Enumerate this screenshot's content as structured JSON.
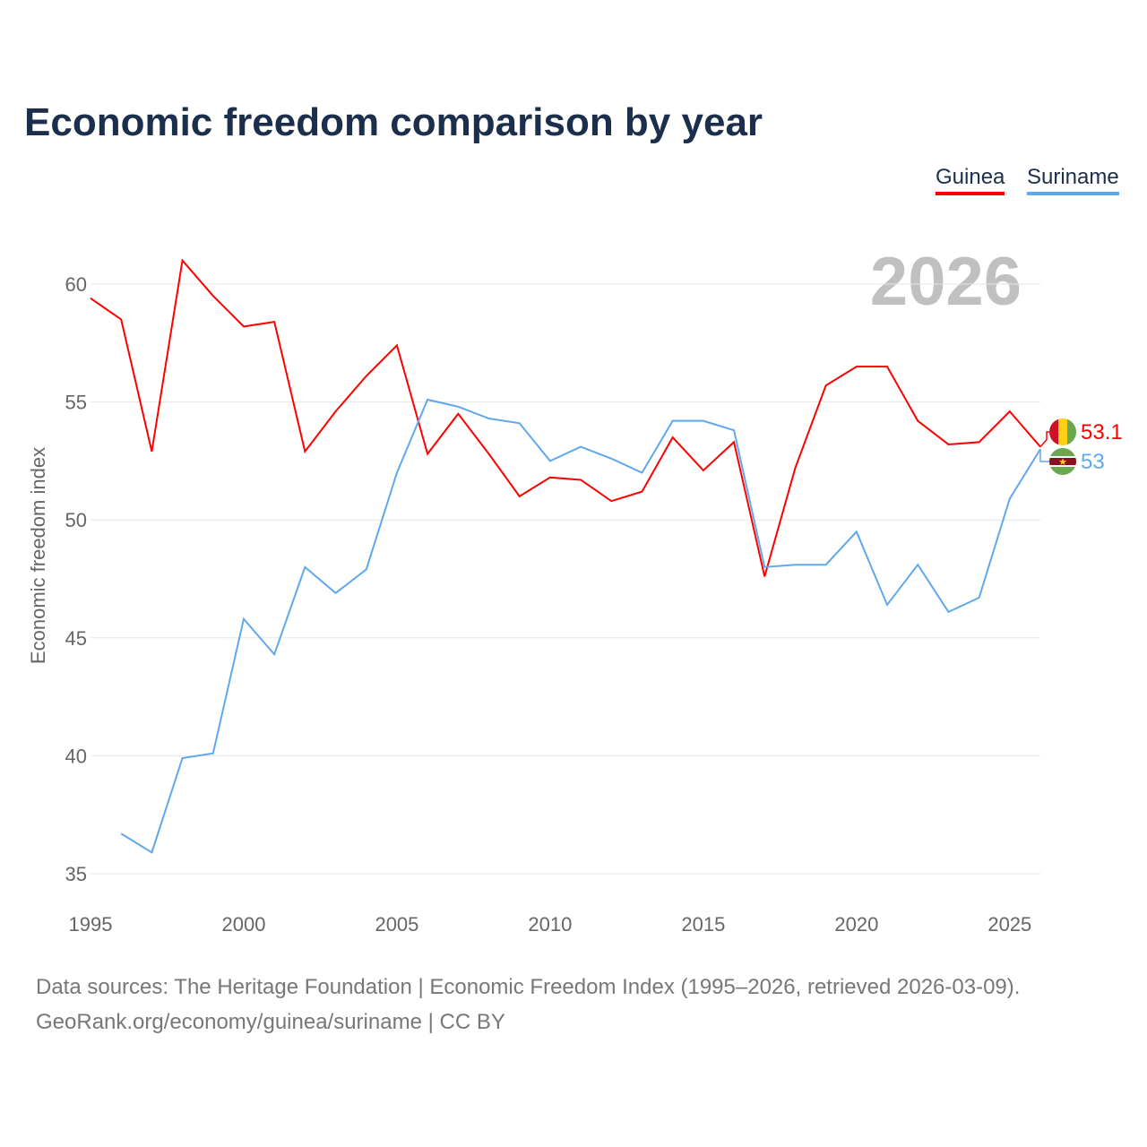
{
  "chart_data": {
    "type": "line",
    "title": "Economic freedom comparison by year",
    "ylabel": "Economic freedom index",
    "xlabel": "",
    "xlim": [
      1995,
      2026
    ],
    "ylim": [
      35,
      62
    ],
    "yticks": [
      35,
      40,
      45,
      50,
      55,
      60
    ],
    "xticks": [
      1995,
      2000,
      2005,
      2010,
      2015,
      2020,
      2025
    ],
    "grid": true,
    "legend_position": "top-right",
    "year_watermark": "2026",
    "series": [
      {
        "name": "Guinea",
        "color": "#ff0000",
        "end_label": "53.1",
        "x": [
          1995,
          1996,
          1997,
          1998,
          1999,
          2000,
          2001,
          2002,
          2003,
          2004,
          2005,
          2006,
          2007,
          2008,
          2009,
          2010,
          2011,
          2012,
          2013,
          2014,
          2015,
          2016,
          2017,
          2018,
          2019,
          2020,
          2021,
          2022,
          2023,
          2024,
          2025,
          2026
        ],
        "values": [
          59.4,
          58.5,
          52.9,
          61.0,
          59.5,
          58.2,
          58.4,
          52.9,
          54.6,
          56.1,
          57.4,
          52.8,
          54.5,
          52.8,
          51.0,
          51.8,
          51.7,
          50.8,
          51.2,
          53.5,
          52.1,
          53.3,
          47.6,
          52.2,
          55.7,
          56.5,
          56.5,
          54.2,
          53.2,
          53.3,
          54.6,
          53.1
        ]
      },
      {
        "name": "Suriname",
        "color": "#5fa8ee",
        "end_label": "53",
        "x": [
          1996,
          1997,
          1998,
          1999,
          2000,
          2001,
          2002,
          2003,
          2004,
          2005,
          2006,
          2007,
          2008,
          2009,
          2010,
          2011,
          2012,
          2013,
          2014,
          2015,
          2016,
          2017,
          2018,
          2019,
          2020,
          2021,
          2022,
          2023,
          2024,
          2025,
          2026
        ],
        "values": [
          36.7,
          35.9,
          39.9,
          40.1,
          45.8,
          44.3,
          48.0,
          46.9,
          47.9,
          52.0,
          55.1,
          54.8,
          54.3,
          54.1,
          52.5,
          53.1,
          52.6,
          52.0,
          54.2,
          54.2,
          53.8,
          48.0,
          48.1,
          48.1,
          49.5,
          46.4,
          48.1,
          46.1,
          46.7,
          50.9,
          53.0
        ]
      }
    ]
  },
  "footer": {
    "sources": "Data sources: The Heritage Foundation | Economic Freedom Index (1995–2026, retrieved 2026-03-09).",
    "credit": "GeoRank.org/economy/guinea/suriname | CC BY"
  }
}
